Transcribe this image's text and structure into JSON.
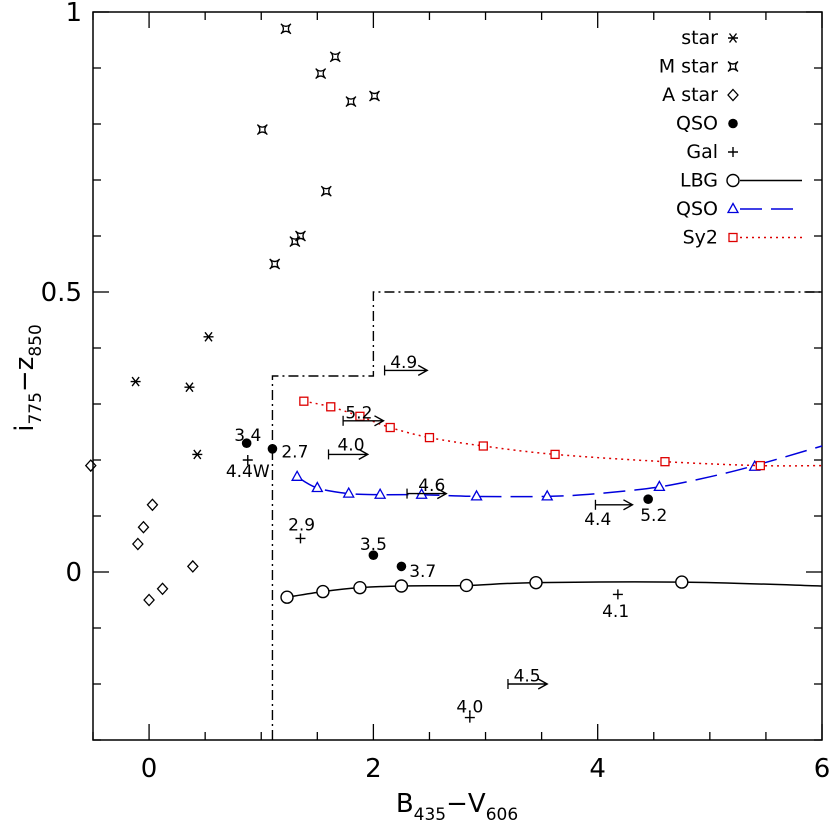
{
  "chart_data": {
    "type": "scatter",
    "xlim": [
      -0.5,
      6
    ],
    "ylim": [
      -0.3,
      1
    ],
    "x_ticks": [
      0,
      2,
      4,
      6
    ],
    "y_ticks": [
      0,
      0.5,
      1
    ],
    "x_tick_labels": [
      "0",
      "2",
      "4",
      "6"
    ],
    "y_tick_labels": [
      "0",
      "0.5",
      "1"
    ],
    "xlabel": {
      "base": "B",
      "sub1": "435",
      "minus": "−V",
      "sub2": "606"
    },
    "ylabel": {
      "base": "i",
      "sub1": "775",
      "minus": "−z",
      "sub2": "850"
    },
    "selection_box": [
      [
        1.1,
        -0.3
      ],
      [
        1.1,
        0.35
      ],
      [
        2.0,
        0.35
      ],
      [
        2.0,
        0.5
      ],
      [
        6.0,
        0.5
      ]
    ],
    "series": [
      {
        "name": "star",
        "marker": "asterisk",
        "color": "#000000",
        "points": [
          [
            -0.12,
            0.34
          ],
          [
            0.36,
            0.33
          ],
          [
            0.43,
            0.21
          ],
          [
            0.53,
            0.42
          ]
        ]
      },
      {
        "name": "M star",
        "marker": "mstar",
        "color": "#000000",
        "points": [
          [
            1.22,
            0.97
          ],
          [
            1.53,
            0.89
          ],
          [
            1.66,
            0.92
          ],
          [
            1.8,
            0.84
          ],
          [
            2.01,
            0.85
          ],
          [
            1.01,
            0.79
          ],
          [
            1.58,
            0.68
          ],
          [
            1.3,
            0.59
          ],
          [
            1.35,
            0.6
          ],
          [
            1.12,
            0.55
          ]
        ]
      },
      {
        "name": "A star",
        "marker": "diamond",
        "color": "#000000",
        "points": [
          [
            -0.52,
            0.19
          ],
          [
            0.03,
            0.12
          ],
          [
            -0.05,
            0.08
          ],
          [
            -0.1,
            0.05
          ],
          [
            0.39,
            0.01
          ],
          [
            0.12,
            -0.03
          ],
          [
            0.0,
            -0.05
          ]
        ]
      },
      {
        "name": "QSO",
        "marker": "dot",
        "color": "#000000",
        "points": [
          [
            0.87,
            0.23
          ],
          [
            1.1,
            0.22
          ],
          [
            2.0,
            0.03
          ],
          [
            2.25,
            0.01
          ],
          [
            4.45,
            0.13
          ]
        ]
      },
      {
        "name": "Gal",
        "marker": "plus",
        "color": "#000000",
        "points": [
          [
            0.88,
            0.2
          ],
          [
            1.35,
            0.06
          ],
          [
            4.18,
            -0.04
          ],
          [
            2.86,
            -0.26
          ]
        ]
      }
    ],
    "tracks": [
      {
        "name": "LBG",
        "marker": "circle",
        "dash": "solid",
        "color": "#000000",
        "x": [
          1.23,
          1.55,
          1.88,
          2.25,
          2.83,
          3.45,
          4.75,
          6.0
        ],
        "y": [
          -0.045,
          -0.035,
          -0.028,
          -0.025,
          -0.024,
          -0.019,
          -0.018,
          -0.025
        ],
        "marker_count": 7
      },
      {
        "name": "QSO",
        "marker": "triangle",
        "dash": "dashed",
        "color": "#0000dd",
        "x": [
          1.32,
          1.5,
          1.78,
          2.06,
          2.43,
          2.92,
          3.55,
          4.0,
          4.55,
          5.0,
          5.4,
          6.0
        ],
        "y": [
          0.17,
          0.15,
          0.14,
          0.138,
          0.138,
          0.135,
          0.135,
          0.14,
          0.152,
          0.17,
          0.19,
          0.225
        ],
        "markers": [
          [
            1.32,
            0.17
          ],
          [
            1.5,
            0.15
          ],
          [
            1.78,
            0.14
          ],
          [
            2.06,
            0.138
          ],
          [
            2.43,
            0.138
          ],
          [
            2.92,
            0.135
          ],
          [
            3.55,
            0.135
          ],
          [
            4.55,
            0.152
          ],
          [
            5.4,
            0.188
          ]
        ]
      },
      {
        "name": "Sy2",
        "marker": "square",
        "dash": "dotted",
        "color": "#dd0000",
        "x": [
          1.38,
          1.62,
          1.88,
          2.15,
          2.5,
          2.98,
          3.62,
          4.6,
          5.45,
          6.0
        ],
        "y": [
          0.305,
          0.295,
          0.278,
          0.258,
          0.24,
          0.225,
          0.21,
          0.197,
          0.19,
          0.19
        ],
        "markers": [
          [
            1.38,
            0.305
          ],
          [
            1.62,
            0.295
          ],
          [
            1.88,
            0.278
          ],
          [
            2.15,
            0.258
          ],
          [
            2.5,
            0.24
          ],
          [
            2.98,
            0.225
          ],
          [
            3.62,
            0.21
          ],
          [
            4.6,
            0.197
          ],
          [
            5.45,
            0.19
          ]
        ]
      }
    ],
    "limit_arrows": [
      {
        "label": "4.9",
        "x": 2.1,
        "y": 0.36,
        "len": 0.38,
        "lx": 2.15,
        "ly": 0.375
      },
      {
        "label": "5.2",
        "x": 1.73,
        "y": 0.27,
        "len": 0.36,
        "lx": 1.75,
        "ly": 0.285
      },
      {
        "label": "4.0",
        "x": 1.6,
        "y": 0.21,
        "len": 0.35,
        "lx": 1.68,
        "ly": 0.228
      },
      {
        "label": "4.6",
        "x": 2.3,
        "y": 0.14,
        "len": 0.35,
        "lx": 2.4,
        "ly": 0.155
      },
      {
        "label": "4.4",
        "x": 3.98,
        "y": 0.12,
        "len": 0.33,
        "lx": 3.88,
        "ly": 0.095
      },
      {
        "label": "4.5",
        "x": 3.2,
        "y": -0.2,
        "len": 0.35,
        "lx": 3.25,
        "ly": -0.185
      }
    ],
    "point_labels": [
      {
        "text": "3.4",
        "x": 0.88,
        "y": 0.245
      },
      {
        "text": "2.7",
        "x": 1.3,
        "y": 0.215
      },
      {
        "text": "4.4W",
        "x": 0.88,
        "y": 0.18
      },
      {
        "text": "2.9",
        "x": 1.36,
        "y": 0.085
      },
      {
        "text": "3.5",
        "x": 2.0,
        "y": 0.05
      },
      {
        "text": "3.7",
        "x": 2.44,
        "y": 0.002
      },
      {
        "text": "5.2",
        "x": 4.5,
        "y": 0.102
      },
      {
        "text": "4.1",
        "x": 4.16,
        "y": -0.07
      },
      {
        "text": "4.0",
        "x": 2.86,
        "y": -0.24
      }
    ],
    "legend": [
      {
        "label": "star",
        "marker": "asterisk",
        "color": "#000000"
      },
      {
        "label": "M star",
        "marker": "mstar",
        "color": "#000000"
      },
      {
        "label": "A star",
        "marker": "diamond",
        "color": "#000000"
      },
      {
        "label": "QSO",
        "marker": "dot",
        "color": "#000000"
      },
      {
        "label": "Gal",
        "marker": "plus",
        "color": "#000000"
      },
      {
        "label": "LBG",
        "marker": "circle",
        "color": "#000000",
        "dash": "solid"
      },
      {
        "label": "QSO",
        "marker": "triangle",
        "color": "#0000dd",
        "dash": "dashed"
      },
      {
        "label": "Sy2",
        "marker": "square",
        "color": "#dd0000",
        "dash": "dotted"
      }
    ]
  }
}
